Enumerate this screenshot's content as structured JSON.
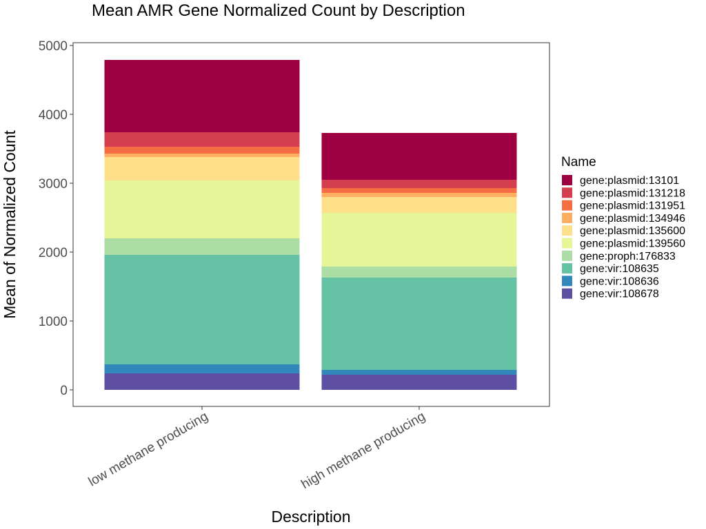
{
  "chart_data": {
    "type": "bar",
    "stacked": true,
    "title": "Mean AMR Gene Normalized Count by Description",
    "xlabel": "Description",
    "ylabel": "Mean of Normalized Count",
    "ylim": [
      0,
      5000
    ],
    "yticks": [
      0,
      1000,
      2000,
      3000,
      4000,
      5000
    ],
    "grid": false,
    "legend_title": "Name",
    "legend_position": "right",
    "categories": [
      "low methane producing",
      "high methane producing"
    ],
    "series": [
      {
        "name": "gene:vir:108678",
        "color": "#5E4FA2",
        "values": [
          240,
          220
        ]
      },
      {
        "name": "gene:vir:108636",
        "color": "#3288BD",
        "values": [
          130,
          70
        ]
      },
      {
        "name": "gene:vir:108635",
        "color": "#66C2A5",
        "values": [
          1590,
          1340
        ]
      },
      {
        "name": "gene:proph:176833",
        "color": "#ABDDA4",
        "values": [
          240,
          160
        ]
      },
      {
        "name": "gene:plasmid:139560",
        "color": "#E6F598",
        "values": [
          840,
          780
        ]
      },
      {
        "name": "gene:plasmid:135600",
        "color": "#FEE08B",
        "values": [
          340,
          230
        ]
      },
      {
        "name": "gene:plasmid:134946",
        "color": "#FDAE61",
        "values": [
          50,
          60
        ]
      },
      {
        "name": "gene:plasmid:131951",
        "color": "#F46D43",
        "values": [
          100,
          70
        ]
      },
      {
        "name": "gene:plasmid:131218",
        "color": "#D53E4F",
        "values": [
          210,
          120
        ]
      },
      {
        "name": "gene:plasmid:13101",
        "color": "#9E0142",
        "values": [
          1050,
          680
        ]
      }
    ]
  }
}
